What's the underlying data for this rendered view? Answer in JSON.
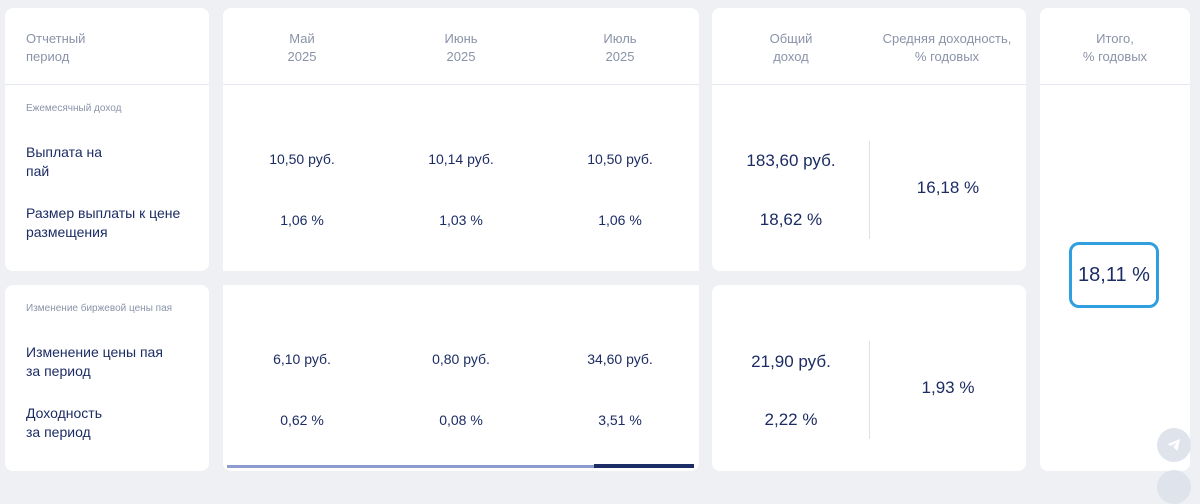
{
  "header": {
    "period": "Отчетный\nпериод",
    "months": [
      "Май\n2025",
      "Июнь\n2025",
      "Июль\n2025"
    ],
    "total_income": "Общий\nдоход",
    "avg_yield": "Средняя доходность,\n% годовых",
    "total": "Итого,\n% годовых"
  },
  "section1": {
    "title": "Ежемесячный доход",
    "rows": [
      {
        "label": "Выплата на\nпай",
        "values": [
          "10,50 руб.",
          "10,14 руб.",
          "10,50 руб."
        ],
        "total": "183,60 руб."
      },
      {
        "label": "Размер выплаты к цене\nразмещения",
        "values": [
          "1,06 %",
          "1,03 %",
          "1,06 %"
        ],
        "total": "18,62 %"
      }
    ],
    "avg": "16,18 %"
  },
  "section2": {
    "title": "Изменение биржевой цены пая",
    "rows": [
      {
        "label": "Изменение цены пая\nза период",
        "values": [
          "6,10 руб.",
          "0,80 руб.",
          "34,60 руб."
        ],
        "total": "21,90 руб."
      },
      {
        "label": "Доходность\nза период",
        "values": [
          "0,62 %",
          "0,08 %",
          "3,51 %"
        ],
        "total": "2,22 %"
      }
    ],
    "avg": "1,93 %"
  },
  "summary": {
    "total_value": "18,11 %"
  },
  "scrollbar": {
    "position": 0.785
  },
  "colors": {
    "accent": "#2f9fe0",
    "text": "#1c2c64",
    "muted": "#8a93a8"
  },
  "icons": {
    "share": "telegram-icon"
  }
}
